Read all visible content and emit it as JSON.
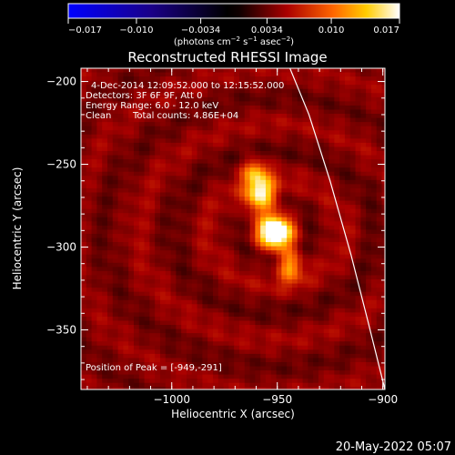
{
  "chart_data": {
    "type": "heatmap",
    "title": "Reconstructed RHESSI Image",
    "xlabel": "Heliocentric X (arcsec)",
    "ylabel": "Heliocentric Y (arcsec)",
    "xlim": [
      -1043,
      -899
    ],
    "ylim": [
      -386,
      -192
    ],
    "x_ticks": [
      {
        "value": -1000,
        "label": "−1000"
      },
      {
        "value": -950,
        "label": "−950"
      },
      {
        "value": -900,
        "label": "−900"
      }
    ],
    "y_ticks": [
      {
        "value": -200,
        "label": "−200"
      },
      {
        "value": -250,
        "label": "−250"
      },
      {
        "value": -300,
        "label": "−300"
      },
      {
        "value": -350,
        "label": "−350"
      }
    ],
    "colorbar": {
      "range": [
        -0.017,
        0.017
      ],
      "colormap": "rhessi-blue-black-red-yellow-white",
      "ticks": [
        {
          "value": -0.017,
          "label": "−0.017"
        },
        {
          "value": -0.01,
          "label": "−0.010"
        },
        {
          "value": -0.0034,
          "label": "−0.0034"
        },
        {
          "value": 0.0034,
          "label": "0.0034"
        },
        {
          "value": 0.01,
          "label": "0.010"
        },
        {
          "value": 0.017,
          "label": "0.017"
        }
      ],
      "unit_label": {
        "prefix": "(photons cm",
        "sup1": "−2",
        "mid1": " s",
        "sup2": "−1",
        "mid2": " asec",
        "sup3": "−2",
        "suffix": ")"
      }
    },
    "peak": {
      "x": -949,
      "y": -291
    },
    "sources": [
      {
        "x": -951,
        "y": -291,
        "amp": 0.0168,
        "sx": 6,
        "sy": 7
      },
      {
        "x": -958,
        "y": -268,
        "amp": 0.013,
        "sx": 5,
        "sy": 8
      },
      {
        "x": -944,
        "y": -311,
        "amp": 0.0085,
        "sx": 4,
        "sy": 7
      },
      {
        "x": -961,
        "y": -254,
        "amp": 0.006,
        "sx": 4,
        "sy": 5
      }
    ],
    "limb": [
      {
        "x": -944,
        "y": -192
      },
      {
        "x": -935,
        "y": -220
      },
      {
        "x": -925,
        "y": -260
      },
      {
        "x": -915,
        "y": -305
      },
      {
        "x": -907,
        "y": -345
      },
      {
        "x": -899,
        "y": -386
      }
    ],
    "annotations": {
      "time": "4-Dec-2014 12:09:52.000 to 12:15:52.000",
      "detectors": "Detectors: 3F 6F 9F, Att 0",
      "energy": "Energy Range: 6.0 - 12.0 keV",
      "method": "Clean",
      "counts": "Total counts: 4.86E+04",
      "peak_text": "Position of Peak = [-949,-291]"
    }
  },
  "footer": {
    "date": "20-May-2022 05:07"
  }
}
